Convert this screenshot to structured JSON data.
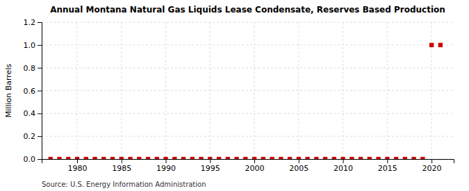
{
  "chart_data": {
    "type": "scatter",
    "title": "Annual Montana Natural Gas Liquids Lease Condensate, Reserves Based Production",
    "ylabel": "Million Barrels",
    "annotations": [
      "Source: U.S. Energy Information Administration"
    ],
    "x": [
      1977,
      1978,
      1979,
      1980,
      1981,
      1982,
      1983,
      1984,
      1985,
      1986,
      1987,
      1988,
      1989,
      1990,
      1991,
      1992,
      1993,
      1994,
      1995,
      1996,
      1997,
      1998,
      1999,
      2000,
      2001,
      2002,
      2003,
      2004,
      2005,
      2006,
      2007,
      2008,
      2009,
      2010,
      2011,
      2012,
      2013,
      2014,
      2015,
      2016,
      2017,
      2018,
      2019,
      2020,
      2021
    ],
    "values": [
      0.0,
      0.0,
      0.0,
      0.0,
      0.0,
      0.0,
      0.0,
      0.0,
      0.0,
      0.0,
      0.0,
      0.0,
      0.0,
      0.0,
      0.0,
      0.0,
      0.0,
      0.0,
      0.0,
      0.0,
      0.0,
      0.0,
      0.0,
      0.0,
      0.0,
      0.0,
      0.0,
      0.0,
      0.0,
      0.0,
      0.0,
      0.0,
      0.0,
      0.0,
      0.0,
      0.0,
      0.0,
      0.0,
      0.0,
      0.0,
      0.0,
      0.0,
      0.0,
      1.0,
      1.0
    ],
    "color": "#cc0000",
    "marker": "square",
    "xlim": [
      1976,
      2022.5
    ],
    "xticks": [
      1980,
      1985,
      1990,
      1995,
      2000,
      2005,
      2010,
      2015,
      2020
    ],
    "ylim": [
      0,
      1.2
    ],
    "yticks": [
      {
        "value": 0.0,
        "label": "0.0"
      },
      0.2,
      0.4,
      0.6,
      0.8,
      {
        "value": 1.0,
        "label": "1.0"
      },
      1.2
    ],
    "grid": true
  }
}
